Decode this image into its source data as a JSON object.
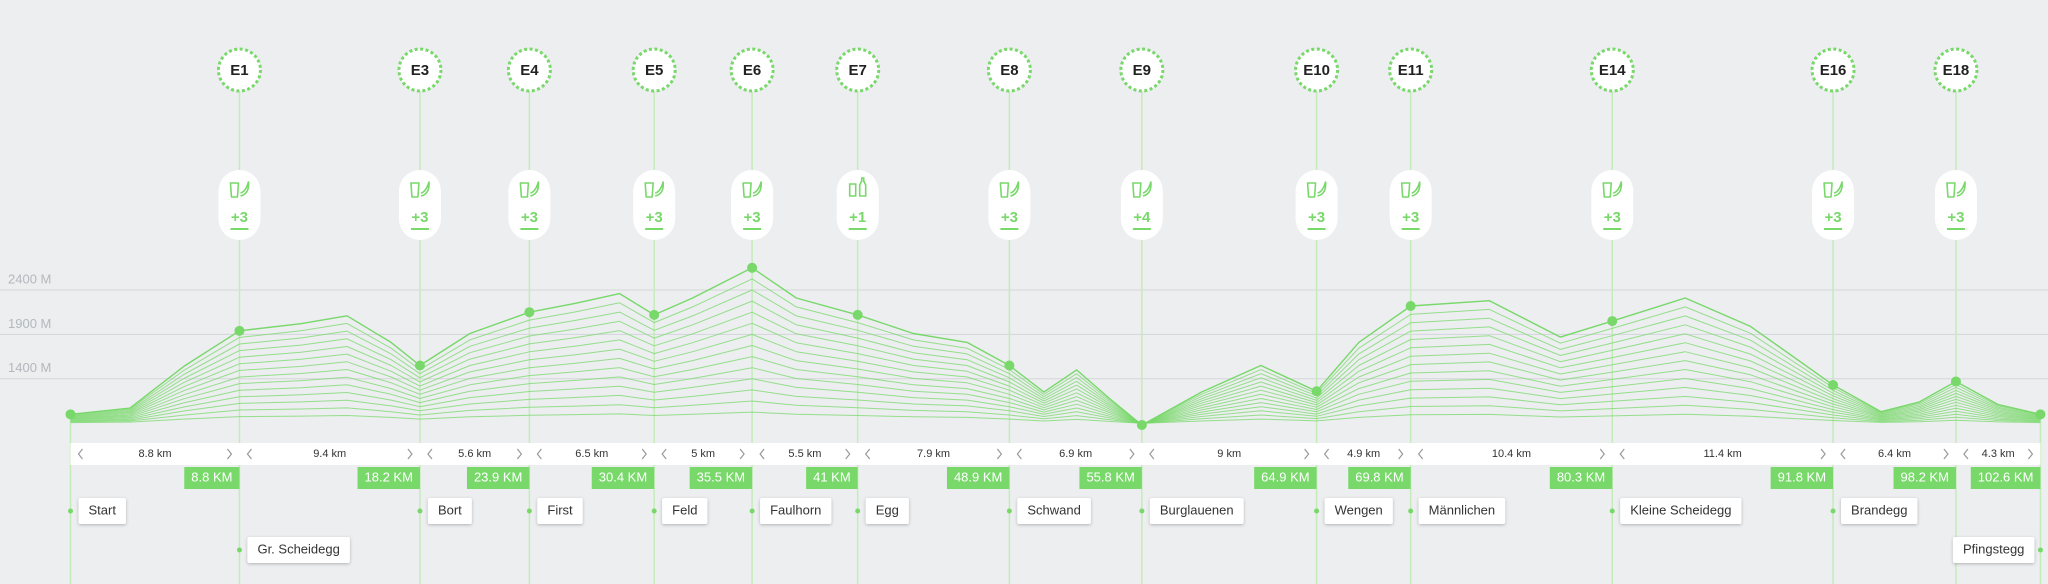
{
  "axis": {
    "labels": [
      {
        "value": 2400,
        "label": "2400 M"
      },
      {
        "value": 1900,
        "label": "1900 M"
      },
      {
        "value": 1400,
        "label": "1400 M"
      }
    ]
  },
  "points": [
    {
      "km": 0,
      "elevation_m": 1000,
      "place": "Start"
    },
    {
      "km": 8.8,
      "km_label": "8.8 KM",
      "elevation_m": 1940,
      "station": {
        "id": "E1",
        "aid": "+3",
        "icon": "drink"
      },
      "place": "Gr. Scheidegg"
    },
    {
      "km": 18.2,
      "km_label": "18.2 KM",
      "elevation_m": 1550,
      "station": {
        "id": "E3",
        "aid": "+3",
        "icon": "drink"
      },
      "place": "Bort"
    },
    {
      "km": 23.9,
      "km_label": "23.9 KM",
      "elevation_m": 2150,
      "station": {
        "id": "E4",
        "aid": "+3",
        "icon": "drink"
      },
      "place": "First"
    },
    {
      "km": 30.4,
      "km_label": "30.4 KM",
      "elevation_m": 2120,
      "station": {
        "id": "E5",
        "aid": "+3",
        "icon": "drink"
      },
      "place": "Feld"
    },
    {
      "km": 35.5,
      "km_label": "35.5 KM",
      "elevation_m": 2650,
      "station": {
        "id": "E6",
        "aid": "+3",
        "icon": "drink"
      },
      "place": "Faulhorn"
    },
    {
      "km": 41,
      "km_label": "41 KM",
      "elevation_m": 2120,
      "station": {
        "id": "E7",
        "aid": "+1",
        "icon": "bottle"
      },
      "place": "Egg"
    },
    {
      "km": 48.9,
      "km_label": "48.9 KM",
      "elevation_m": 1550,
      "station": {
        "id": "E8",
        "aid": "+3",
        "icon": "drink"
      },
      "place": "Schwand"
    },
    {
      "km": 55.8,
      "km_label": "55.8 KM",
      "elevation_m": 880,
      "station": {
        "id": "E9",
        "aid": "+4",
        "icon": "drink"
      },
      "place": "Burglauenen"
    },
    {
      "km": 64.9,
      "km_label": "64.9 KM",
      "elevation_m": 1260,
      "station": {
        "id": "E10",
        "aid": "+3",
        "icon": "drink"
      },
      "place": "Wengen"
    },
    {
      "km": 69.8,
      "km_label": "69.8 KM",
      "elevation_m": 2220,
      "station": {
        "id": "E11",
        "aid": "+3",
        "icon": "drink"
      },
      "place": "Männlichen"
    },
    {
      "km": 80.3,
      "km_label": "80.3 KM",
      "elevation_m": 2050,
      "station": {
        "id": "E14",
        "aid": "+3",
        "icon": "drink"
      },
      "place": "Kleine Scheidegg"
    },
    {
      "km": 91.8,
      "km_label": "91.8 KM",
      "elevation_m": 1330,
      "station": {
        "id": "E16",
        "aid": "+3",
        "icon": "drink"
      },
      "place": "Brandegg"
    },
    {
      "km": 98.2,
      "km_label": "98.2 KM",
      "elevation_m": 1370,
      "station": {
        "id": "E18",
        "aid": "+3",
        "icon": "drink"
      }
    },
    {
      "km": 102.6,
      "km_label": "102.6 KM",
      "elevation_m": 1000,
      "place": "Pfingstegg"
    }
  ],
  "segments": [
    "8.8 km",
    "9.4 km",
    "5.6 km",
    "6.5 km",
    "5 km",
    "5.5 km",
    "7.9 km",
    "6.9 km",
    "9 km",
    "4.9 km",
    "10.4 km",
    "11.4 km",
    "6.4 km",
    "4.3 km"
  ],
  "profile": {
    "km": [
      0,
      3.1,
      5.9,
      8.8,
      12,
      14.4,
      16.7,
      18.2,
      20.8,
      23.9,
      26.3,
      28.6,
      30.4,
      32.4,
      35.5,
      37.8,
      41,
      43.9,
      46.7,
      48.9,
      50.7,
      52.4,
      54.1,
      55.8,
      58.9,
      62,
      64.9,
      67.1,
      69.8,
      73.9,
      77.6,
      80.3,
      84.1,
      87.5,
      91.8,
      94.3,
      96.3,
      98.2,
      100.4,
      102.6
    ],
    "elevation_m": [
      1000,
      1070,
      1540,
      1940,
      2020,
      2110,
      1810,
      1550,
      1910,
      2150,
      2250,
      2360,
      2120,
      2310,
      2650,
      2310,
      2120,
      1910,
      1810,
      1550,
      1250,
      1500,
      1180,
      880,
      1250,
      1550,
      1260,
      1810,
      2220,
      2280,
      1870,
      2050,
      2310,
      1990,
      1330,
      1030,
      1140,
      1370,
      1110,
      1000
    ]
  }
}
